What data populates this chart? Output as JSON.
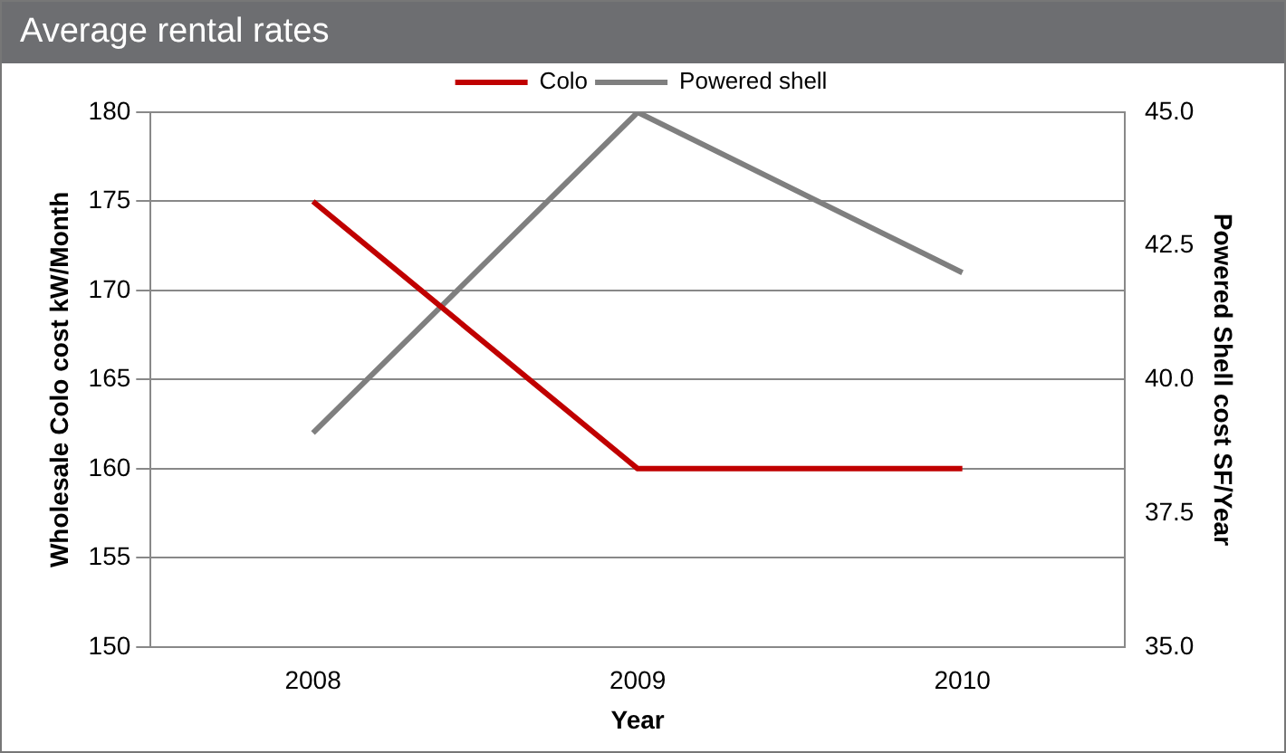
{
  "chart_data": {
    "type": "line",
    "title": "Average rental rates",
    "xlabel": "Year",
    "ylabel": "Wholesale Colo cost kW/Month",
    "y2label": "Powered Shell cost SF/Year",
    "categories": [
      "2008",
      "2009",
      "2010"
    ],
    "series": [
      {
        "name": "Colo",
        "color": "#c00000",
        "values": [
          175,
          160,
          160
        ]
      },
      {
        "name": "Powered shell",
        "color": "#7f7f7f",
        "values": [
          39,
          45,
          42
        ],
        "axis": "y2"
      }
    ],
    "ylim": [
      150,
      180
    ],
    "yticks": [
      150,
      155,
      160,
      165,
      170,
      175,
      180
    ],
    "y2lim": [
      35,
      45
    ],
    "y2ticks": [
      {
        "value": 35,
        "label": "35.0"
      },
      {
        "value": 37.5,
        "label": "37.5"
      },
      {
        "value": 40,
        "label": "40.0"
      },
      {
        "value": 42.5,
        "label": "42.5"
      },
      {
        "value": 45,
        "label": "45.0"
      }
    ],
    "grid": "y",
    "legend": "top",
    "marker": "none",
    "line_style": "solid"
  }
}
